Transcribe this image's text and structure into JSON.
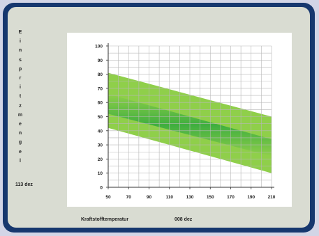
{
  "y_axis_label": [
    "E",
    "i",
    "n",
    "s",
    "p",
    "r",
    "i",
    "t",
    "z",
    "m",
    "e",
    "n",
    "g",
    "e",
    "l"
  ],
  "y_readout": "113 dez",
  "x_axis_label": "Kraftstofftemperatur",
  "x_readout": "008 dez",
  "colors": {
    "frame": "#16376e",
    "panel": "#d9dcd2",
    "plot_bg": "#ffffff",
    "band_outer": "#8fcf4a",
    "band_inner": "#3fae3f",
    "grid": "#b8b8b8"
  },
  "chart_data": {
    "type": "area",
    "x_ticks": [
      50,
      70,
      90,
      110,
      130,
      150,
      170,
      190,
      210
    ],
    "y_ticks": [
      0,
      10,
      20,
      30,
      40,
      50,
      60,
      70,
      80,
      90,
      100
    ],
    "xlim": [
      50,
      210
    ],
    "ylim": [
      0,
      100
    ],
    "grid": true,
    "outer_band": {
      "x": [
        50,
        210
      ],
      "upper": [
        81,
        50
      ],
      "lower": [
        42,
        10
      ]
    },
    "inner_band": {
      "x": [
        50,
        210
      ],
      "upper": [
        66,
        34
      ],
      "lower": [
        52,
        22
      ]
    }
  }
}
